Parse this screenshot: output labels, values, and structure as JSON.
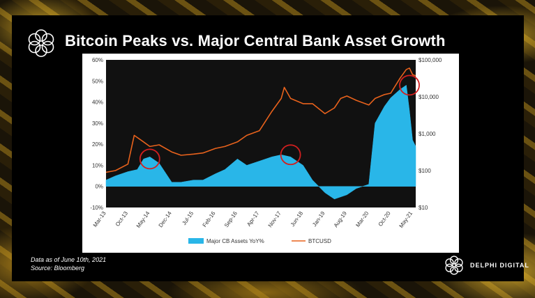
{
  "title": "Bitcoin Peaks vs. Major Central Bank Asset Growth",
  "footnote": {
    "line1": "Data as of June 10th, 2021",
    "line2": "Source: Bloomberg"
  },
  "brand": "DELPHI DIGITAL",
  "colors": {
    "cb_fill": "#29b6e8",
    "btc_line": "#e8621c",
    "circle": "#d21f1f",
    "plot_bg": "#111111"
  },
  "chart_data": {
    "type": "area",
    "x_ticks": [
      "Mar-13",
      "Oct-13",
      "May-14",
      "Dec-14",
      "Jul-15",
      "Feb-16",
      "Sep-16",
      "Apr-17",
      "Nov-17",
      "Jun-18",
      "Jan-19",
      "Aug-19",
      "Mar-20",
      "Oct-20",
      "May-21"
    ],
    "left_axis": {
      "ticks": [
        "60%",
        "50%",
        "40%",
        "30%",
        "20%",
        "10%",
        "0%",
        "-10%"
      ],
      "range": [
        -10,
        60
      ]
    },
    "right_axis": {
      "ticks": [
        "$100,000",
        "$10,000",
        "$1,000",
        "$100",
        "$10"
      ],
      "range": [
        10,
        100000
      ],
      "scale": "log"
    },
    "series": [
      {
        "name": "Major CB Assets YoY%",
        "type": "area",
        "axis": "left",
        "x": [
          "Mar-13",
          "Jun-13",
          "Oct-13",
          "Jan-14",
          "Mar-14",
          "May-14",
          "Aug-14",
          "Dec-14",
          "Mar-15",
          "Jul-15",
          "Oct-15",
          "Feb-16",
          "May-16",
          "Sep-16",
          "Dec-16",
          "Apr-17",
          "Aug-17",
          "Nov-17",
          "Feb-18",
          "Jun-18",
          "Sep-18",
          "Jan-19",
          "Apr-19",
          "Aug-19",
          "Nov-19",
          "Mar-20",
          "May-20",
          "Aug-20",
          "Oct-20",
          "Jan-21",
          "Mar-21",
          "Apr-21",
          "May-21",
          "Jun-21"
        ],
        "values": [
          3,
          5,
          7,
          8,
          13,
          14,
          11,
          2,
          2,
          3,
          3,
          6,
          8,
          13,
          10,
          12,
          14,
          15,
          14,
          10,
          3,
          -3,
          -6,
          -4,
          -1,
          1,
          30,
          38,
          42,
          46,
          48,
          36,
          22,
          19
        ]
      },
      {
        "name": "BTCUSD",
        "type": "line",
        "axis": "right",
        "x": [
          "Mar-13",
          "Jun-13",
          "Oct-13",
          "Dec-13",
          "Mar-14",
          "May-14",
          "Aug-14",
          "Dec-14",
          "Mar-15",
          "Jul-15",
          "Oct-15",
          "Feb-16",
          "May-16",
          "Sep-16",
          "Dec-16",
          "Apr-17",
          "Aug-17",
          "Nov-17",
          "Dec-17",
          "Feb-18",
          "Jun-18",
          "Sep-18",
          "Jan-19",
          "Apr-19",
          "Jun-19",
          "Aug-19",
          "Nov-19",
          "Mar-20",
          "May-20",
          "Aug-20",
          "Oct-20",
          "Jan-21",
          "Mar-21",
          "Apr-21",
          "May-21",
          "Jun-21"
        ],
        "values": [
          90,
          100,
          150,
          900,
          600,
          450,
          500,
          320,
          260,
          280,
          300,
          400,
          450,
          600,
          900,
          1200,
          4000,
          9000,
          18000,
          9000,
          6500,
          6500,
          3500,
          5000,
          9000,
          10500,
          8000,
          6000,
          9000,
          11500,
          12500,
          32000,
          55000,
          60000,
          40000,
          37000
        ]
      }
    ],
    "annotations": [
      {
        "type": "circle",
        "x": "May-14",
        "y_left": 13
      },
      {
        "type": "circle",
        "x": "Feb-18",
        "y_left": 15
      },
      {
        "type": "circle",
        "x": "Apr-21",
        "y_left": 48
      }
    ],
    "legend": "bottom-center"
  }
}
